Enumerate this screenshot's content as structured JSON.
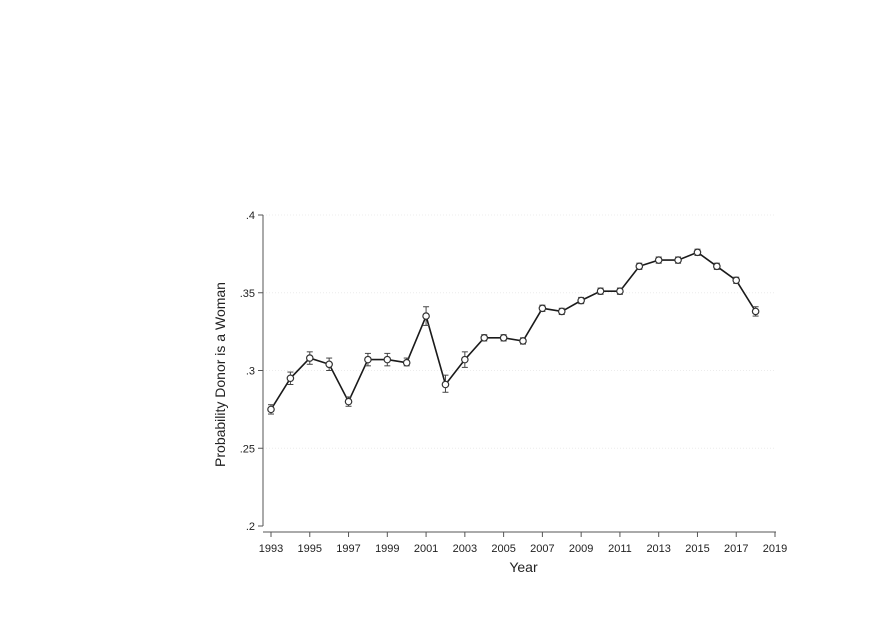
{
  "chart_data": {
    "type": "line",
    "title": "",
    "xlabel": "Year",
    "ylabel": "Probability Donor is a Woman",
    "xlim": [
      1993,
      2019
    ],
    "ylim": [
      0.2,
      0.4
    ],
    "xticks": [
      1993,
      1995,
      1997,
      1999,
      2001,
      2003,
      2005,
      2007,
      2009,
      2011,
      2013,
      2015,
      2017,
      2019
    ],
    "yticks": [
      0.2,
      0.25,
      0.3,
      0.35,
      0.4
    ],
    "xtick_labels": [
      "1993",
      "1995",
      "1997",
      "1999",
      "2001",
      "2003",
      "2005",
      "2007",
      "2009",
      "2011",
      "2013",
      "2015",
      "2017",
      "2019"
    ],
    "ytick_labels": [
      ".2",
      ".25",
      ".3",
      ".35",
      ".4"
    ],
    "grid": true,
    "series": [
      {
        "x": [
          1993,
          1994,
          1995,
          1996,
          1997,
          1998,
          1999,
          2000,
          2001,
          2002,
          2003,
          2004,
          2005,
          2006,
          2007,
          2008,
          2009,
          2010,
          2011,
          2012,
          2013,
          2014,
          2015,
          2016,
          2017,
          2018
        ],
        "y": [
          0.275,
          0.295,
          0.308,
          0.304,
          0.28,
          0.307,
          0.307,
          0.305,
          0.335,
          0.291,
          0.307,
          0.321,
          0.321,
          0.319,
          0.34,
          0.338,
          0.345,
          0.351,
          0.351,
          0.367,
          0.371,
          0.371,
          0.376,
          0.367,
          0.358,
          0.338
        ],
        "ci_low": [
          0.272,
          0.291,
          0.304,
          0.3,
          0.277,
          0.303,
          0.303,
          0.303,
          0.329,
          0.286,
          0.302,
          0.319,
          0.319,
          0.317,
          0.338,
          0.336,
          0.343,
          0.349,
          0.349,
          0.365,
          0.369,
          0.369,
          0.374,
          0.365,
          0.356,
          0.335
        ],
        "ci_high": [
          0.278,
          0.299,
          0.312,
          0.308,
          0.283,
          0.311,
          0.311,
          0.308,
          0.341,
          0.297,
          0.312,
          0.323,
          0.323,
          0.321,
          0.342,
          0.34,
          0.347,
          0.353,
          0.353,
          0.369,
          0.373,
          0.373,
          0.378,
          0.369,
          0.36,
          0.341
        ]
      }
    ]
  }
}
